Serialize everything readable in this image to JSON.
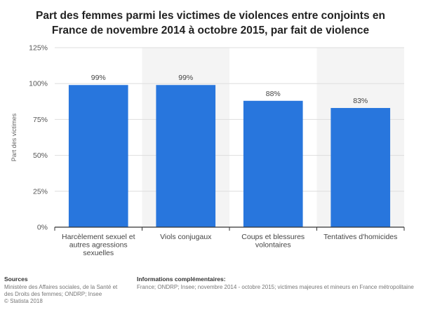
{
  "chart_data": {
    "type": "bar",
    "title": "Part des femmes parmi les victimes de violences entre conjoints en France de novembre 2014 à octobre 2015, par fait de violence",
    "title_lines": [
      "Part des femmes parmi les victimes de violences entre conjoints en",
      "France de novembre 2014 à octobre 2015, par fait de violence"
    ],
    "categories": [
      [
        "Harcèlement sexuel et",
        "autres agressions",
        "sexuelles"
      ],
      [
        "Viols conjugaux"
      ],
      [
        "Coups et blessures",
        "volontaires"
      ],
      [
        "Tentatives d'homicides"
      ]
    ],
    "values": [
      99,
      99,
      88,
      83
    ],
    "value_labels": [
      "99%",
      "99%",
      "88%",
      "83%"
    ],
    "ylabel": "Part des victimes",
    "xlabel": "",
    "ylim": [
      0,
      125
    ],
    "yticks": [
      0,
      25,
      50,
      75,
      100,
      125
    ],
    "ytick_labels": [
      "0%",
      "25%",
      "50%",
      "75%",
      "100%",
      "125%"
    ],
    "bar_color": "#2876dd",
    "grid": true
  },
  "footer": {
    "sources_heading": "Sources",
    "sources_lines": [
      "Ministère des Affaires sociales, de la Santé et",
      "des Droits des femmes; ONDRP; Insee",
      "© Statista 2018"
    ],
    "info_heading": "Informations complémentaires:",
    "info_text": "France; ONDRP; Insee; novembre 2014 - octobre 2015; victimes majeures et mineurs en France métropolitaine"
  }
}
